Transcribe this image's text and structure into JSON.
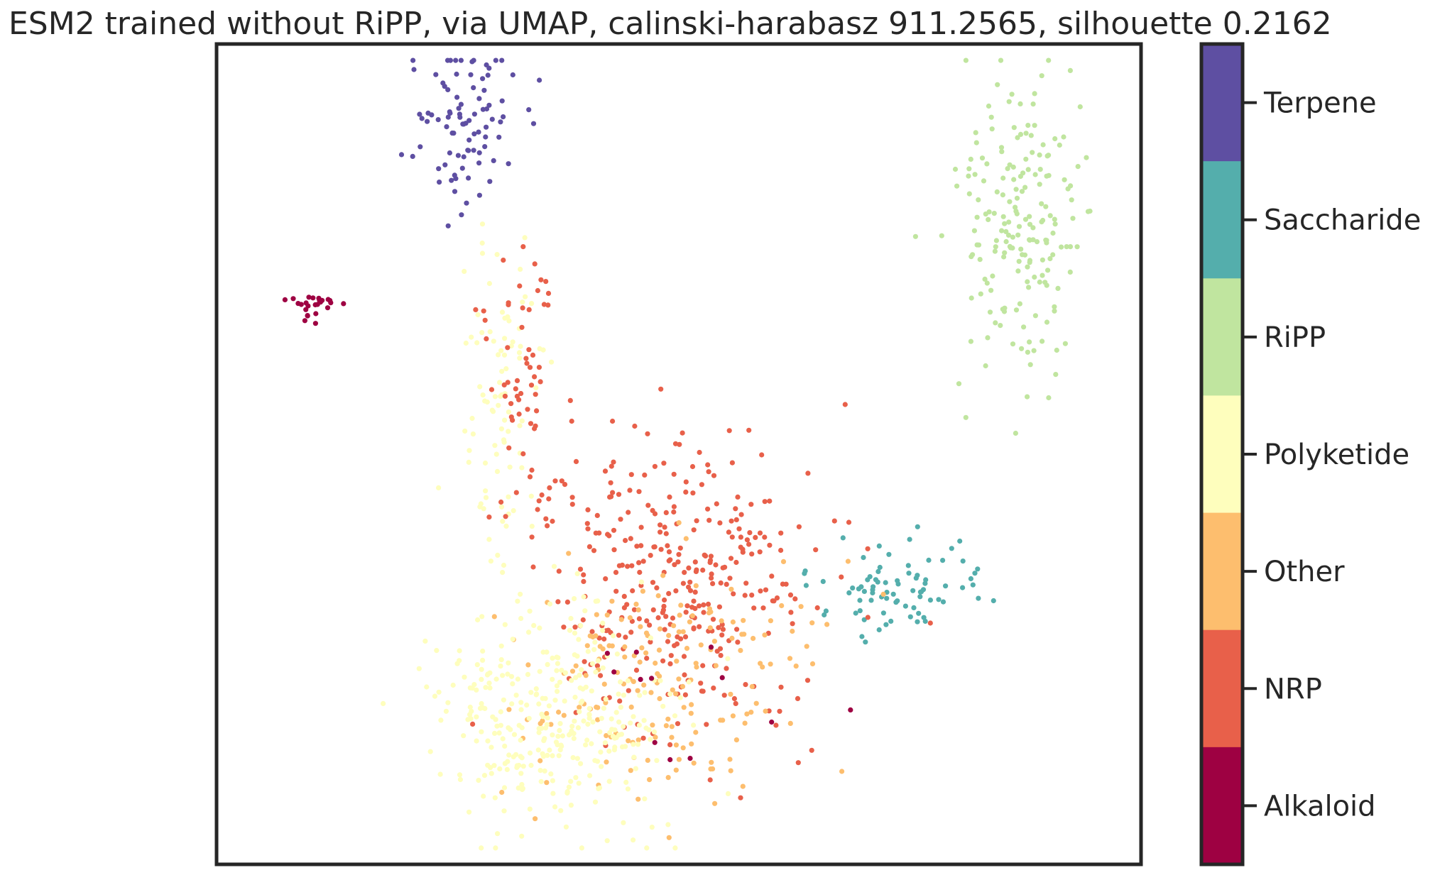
{
  "chart_data": {
    "type": "scatter",
    "title": "ESM2 trained without RiPP, via UMAP, calinski-harabasz 911.2565, silhouette 0.2162",
    "xlabel": "",
    "ylabel": "",
    "axis_ticks": false,
    "grid": false,
    "colorbar": {
      "placement": "right",
      "categories": [
        "Alkaloid",
        "NRP",
        "Other",
        "Polyketide",
        "RiPP",
        "Saccharide",
        "Terpene"
      ],
      "colors": [
        "#9e0142",
        "#e8604a",
        "#fdbe6e",
        "#fefebd",
        "#c0e59f",
        "#54aeac",
        "#5e4fa2"
      ]
    },
    "clusters": [
      {
        "category": "Terpene",
        "center": [
          0.27,
          0.1
        ],
        "spread": [
          0.03,
          0.055
        ],
        "count": 90
      },
      {
        "category": "Polyketide",
        "center": [
          0.31,
          0.43
        ],
        "spread": [
          0.02,
          0.11
        ],
        "count": 90
      },
      {
        "category": "NRP",
        "center": [
          0.33,
          0.42
        ],
        "spread": [
          0.025,
          0.09
        ],
        "count": 60
      },
      {
        "category": "Alkaloid",
        "center": [
          0.1,
          0.32
        ],
        "spread": [
          0.02,
          0.01
        ],
        "count": 25
      },
      {
        "category": "RiPP",
        "center": [
          0.87,
          0.22
        ],
        "spread": [
          0.035,
          0.09
        ],
        "count": 190
      },
      {
        "category": "Saccharide",
        "center": [
          0.74,
          0.66
        ],
        "spread": [
          0.055,
          0.03
        ],
        "count": 80
      },
      {
        "category": "NRP",
        "center": [
          0.5,
          0.66
        ],
        "spread": [
          0.08,
          0.09
        ],
        "count": 330
      },
      {
        "category": "Other",
        "center": [
          0.49,
          0.78
        ],
        "spread": [
          0.09,
          0.07
        ],
        "count": 180
      },
      {
        "category": "Polyketide",
        "center": [
          0.36,
          0.82
        ],
        "spread": [
          0.06,
          0.065
        ],
        "count": 330
      },
      {
        "category": "Alkaloid",
        "center": [
          0.44,
          0.8
        ],
        "spread": [
          0.09,
          0.05
        ],
        "count": 12
      }
    ]
  }
}
